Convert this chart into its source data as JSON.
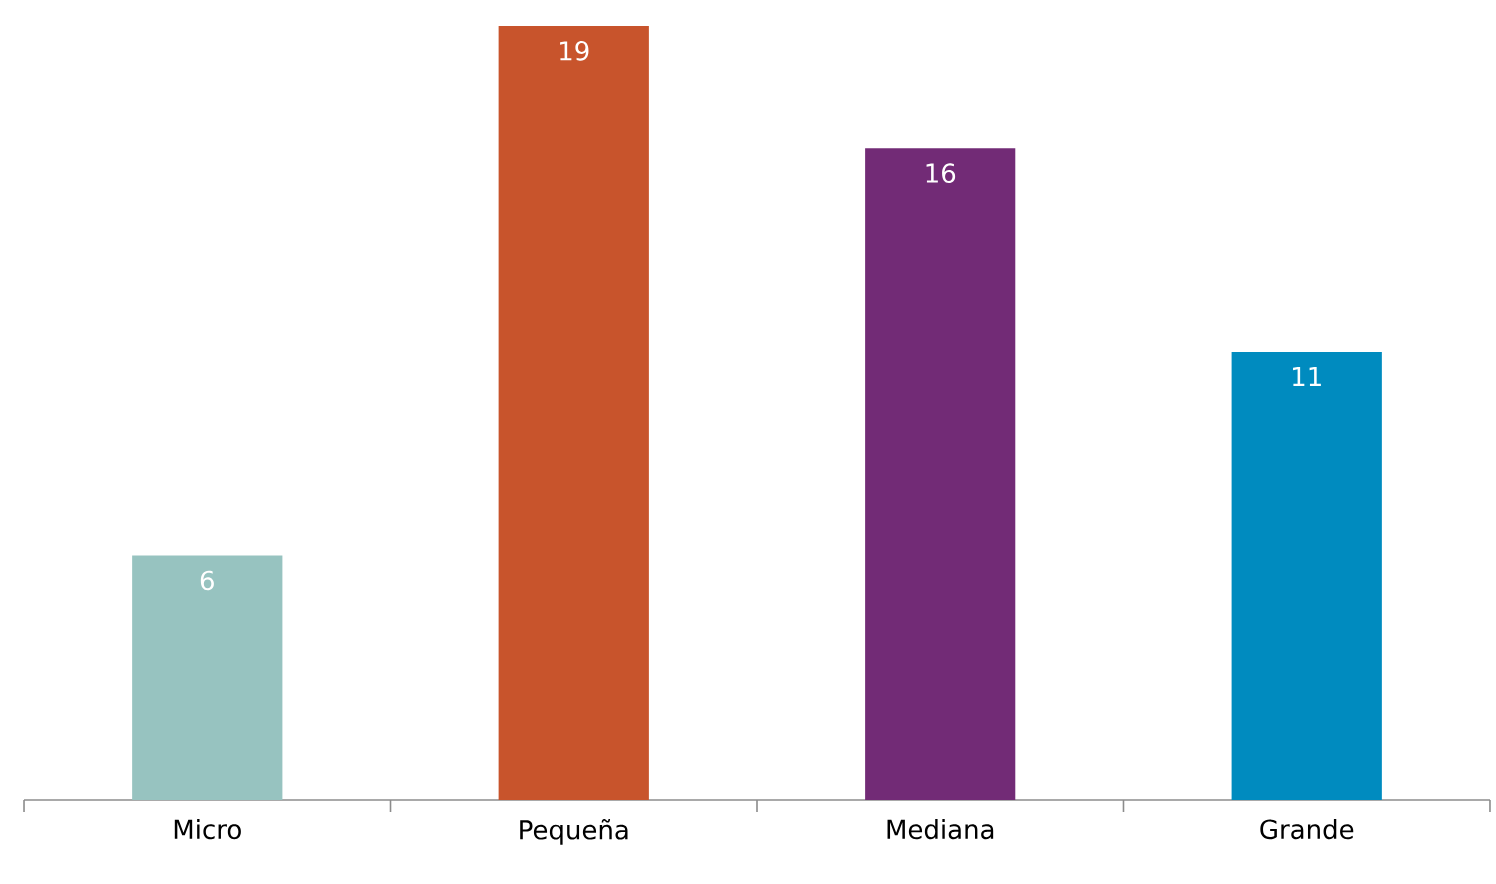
{
  "chart_data": {
    "type": "bar",
    "categories": [
      "Micro",
      "Pequeña",
      "Mediana",
      "Grande"
    ],
    "values": [
      6,
      19,
      16,
      11
    ],
    "colors": [
      "#97c3c0",
      "#c8542c",
      "#722b76",
      "#008bbf"
    ],
    "data_labels": true,
    "tick_labels": "x"
  }
}
